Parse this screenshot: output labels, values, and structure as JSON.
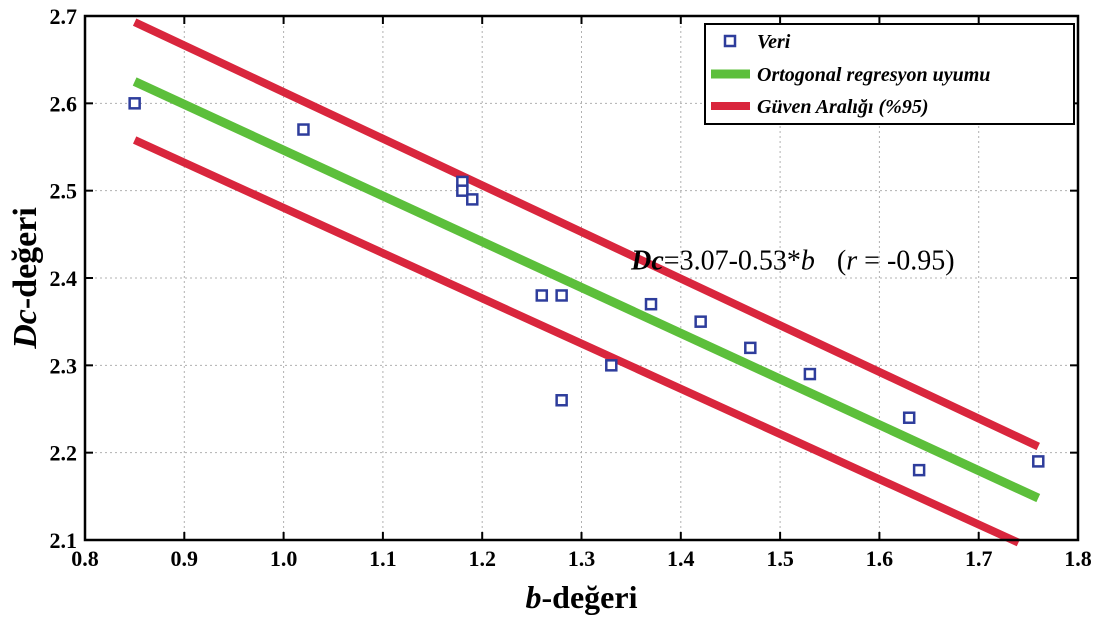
{
  "chart_data": {
    "type": "scatter",
    "xlabel": "b-değeri",
    "ylabel": "Dc-değeri",
    "xlim": [
      0.8,
      1.8
    ],
    "ylim": [
      2.1,
      2.7
    ],
    "xticks": [
      0.8,
      0.9,
      1.0,
      1.1,
      1.2,
      1.3,
      1.4,
      1.5,
      1.6,
      1.7,
      1.8
    ],
    "yticks": [
      2.1,
      2.2,
      2.3,
      2.4,
      2.5,
      2.6,
      2.7
    ],
    "xtick_labels": [
      "0.8",
      "0.9",
      "1.0",
      "1.1",
      "1.2",
      "1.3",
      "1.4",
      "1.5",
      "1.6",
      "1.7",
      "1.8"
    ],
    "ytick_labels": [
      "2.1",
      "2.2",
      "2.3",
      "2.4",
      "2.5",
      "2.6",
      "2.7"
    ],
    "grid": true,
    "legend_position": "top-right",
    "series": [
      {
        "name": "Veri",
        "kind": "scatter",
        "color": "#2e3d9c",
        "points": [
          [
            0.85,
            2.6
          ],
          [
            1.02,
            2.57
          ],
          [
            1.18,
            2.51
          ],
          [
            1.18,
            2.5
          ],
          [
            1.19,
            2.49
          ],
          [
            1.26,
            2.38
          ],
          [
            1.28,
            2.38
          ],
          [
            1.28,
            2.26
          ],
          [
            1.33,
            2.3
          ],
          [
            1.37,
            2.37
          ],
          [
            1.42,
            2.35
          ],
          [
            1.47,
            2.32
          ],
          [
            1.53,
            2.29
          ],
          [
            1.63,
            2.24
          ],
          [
            1.64,
            2.18
          ],
          [
            1.76,
            2.19
          ]
        ]
      },
      {
        "name": "Ortogonal regresyon uyumu",
        "kind": "line",
        "color": "#5cbf3b",
        "points": [
          [
            0.85,
            2.625
          ],
          [
            1.76,
            2.148
          ]
        ]
      },
      {
        "name": "Güven Aralığı (%95)",
        "kind": "band",
        "color": "#d9263d",
        "upper": [
          [
            0.85,
            2.693
          ],
          [
            1.76,
            2.207
          ]
        ],
        "lower": [
          [
            0.85,
            2.558
          ],
          [
            1.74,
            2.097
          ]
        ]
      }
    ],
    "annotation": {
      "var": "Dc",
      "formula": "=3.07-0.53*",
      "b": "b",
      "r_open": "(",
      "r_var": "r",
      "r_value": " = -0.95)",
      "position": [
        1.35,
        2.41
      ]
    }
  }
}
